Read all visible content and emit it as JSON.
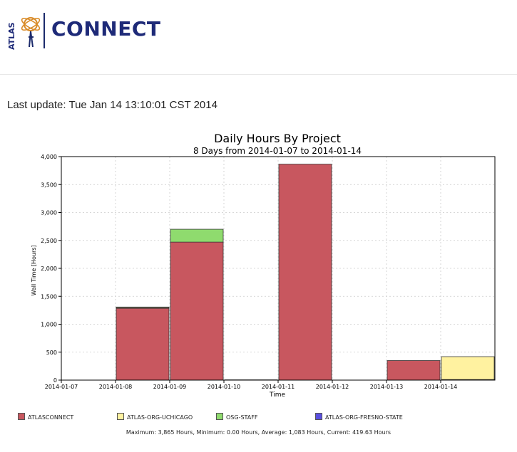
{
  "header": {
    "logo_text": "ATLAS",
    "brand": "CONNECT"
  },
  "last_update": "Last update: Tue Jan 14 13:10:01 CST 2014",
  "chart_data": {
    "type": "bar",
    "stacked": true,
    "title": "Daily Hours By Project",
    "subtitle": "8 Days from 2014-01-07 to 2014-01-14",
    "xlabel": "Time",
    "ylabel": "Wall Time [Hours]",
    "ylim": [
      0,
      4000
    ],
    "yticks": [
      0,
      500,
      1000,
      1500,
      2000,
      2500,
      3000,
      3500,
      4000
    ],
    "ytick_labels": [
      "0",
      "500",
      "1,000",
      "1,500",
      "2,000",
      "2,500",
      "3,000",
      "3,500",
      "4,000"
    ],
    "categories": [
      "2014-01-07",
      "2014-01-08",
      "2014-01-09",
      "2014-01-10",
      "2014-01-11",
      "2014-01-12",
      "2014-01-13",
      "2014-01-14"
    ],
    "grid": true,
    "series": [
      {
        "name": "ATLASCONNECT",
        "color": "#c8575f",
        "values": [
          0,
          1285,
          2470,
          5,
          3865,
          0,
          350,
          10
        ]
      },
      {
        "name": "ATLAS-ORG-UCHICAGO",
        "color": "#fff2a0",
        "values": [
          0,
          15,
          0,
          0,
          0,
          0,
          0,
          410
        ]
      },
      {
        "name": "OSG-STAFF",
        "color": "#8fdb6e",
        "values": [
          0,
          8,
          230,
          0,
          0,
          0,
          0,
          0
        ]
      },
      {
        "name": "ATLAS-ORG-FRESNO-STATE",
        "color": "#5a4fe0",
        "values": [
          0,
          0,
          0,
          0,
          0,
          0,
          0,
          0
        ]
      }
    ],
    "legend_position": "bottom",
    "stats": "Maximum: 3,865 Hours, Minimum: 0.00 Hours, Average: 1,083 Hours, Current: 419.63 Hours"
  }
}
